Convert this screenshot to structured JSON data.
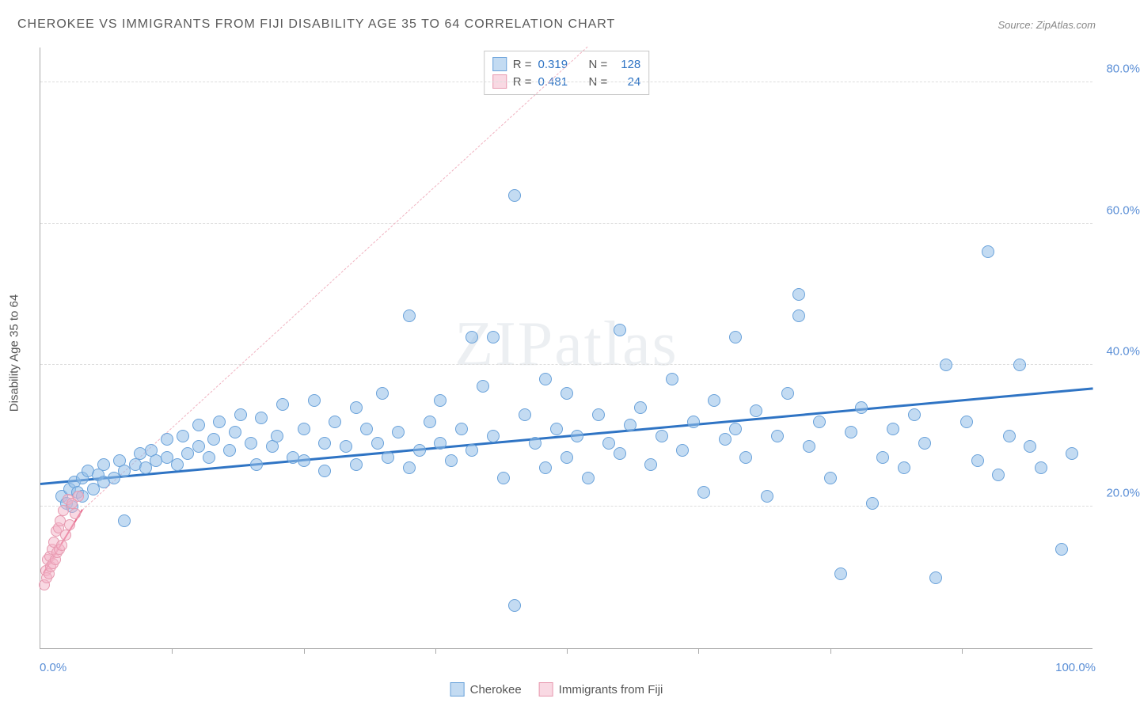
{
  "title": "CHEROKEE VS IMMIGRANTS FROM FIJI DISABILITY AGE 35 TO 64 CORRELATION CHART",
  "source": "Source: ZipAtlas.com",
  "watermark": "ZIPatlas",
  "chart": {
    "type": "scatter",
    "xlim": [
      0,
      100
    ],
    "ylim": [
      0,
      85
    ],
    "x_min_label": "0.0%",
    "x_max_label": "100.0%",
    "x_ticks": [
      12.5,
      25,
      37.5,
      50,
      62.5,
      75,
      87.5
    ],
    "y_ticks": [
      {
        "v": 20,
        "label": "20.0%"
      },
      {
        "v": 40,
        "label": "40.0%"
      },
      {
        "v": 60,
        "label": "60.0%"
      },
      {
        "v": 80,
        "label": "80.0%"
      }
    ],
    "y_axis_label": "Disability Age 35 to 64",
    "background_color": "#ffffff",
    "grid_color": "#dddddd",
    "stat_box": {
      "rows": [
        {
          "swatch": "sw-blue",
          "r_label": "R =",
          "r_val": "0.319",
          "n_label": "N =",
          "n_val": "128"
        },
        {
          "swatch": "sw-pink",
          "r_label": "R =",
          "r_val": "0.481",
          "n_label": "N =",
          "n_val": "24"
        }
      ]
    },
    "legend": [
      {
        "swatch": "sw-blue",
        "label": "Cherokee"
      },
      {
        "swatch": "sw-pink",
        "label": "Immigrants from Fiji"
      }
    ],
    "trend_lines": {
      "blue": {
        "x1": 0,
        "y1": 23.0,
        "x2": 100,
        "y2": 36.5,
        "color": "#2f74c4",
        "width": 3
      },
      "pink": {
        "x1": 0.3,
        "y1": 10.5,
        "x2": 4.0,
        "y2": 19.5,
        "color": "#e86a8c",
        "width": 2
      },
      "pink_dash": {
        "x1": 4.0,
        "y1": 19.5,
        "x2": 52,
        "y2": 85,
        "color": "#f0b2c0",
        "width": 1.5,
        "dash": true
      }
    },
    "series": {
      "cherokee": {
        "marker_fill": "rgba(146,190,232,0.55)",
        "marker_stroke": "#6aa2da",
        "marker_size": 16,
        "points": [
          [
            2,
            21.5
          ],
          [
            2.5,
            20.5
          ],
          [
            2.8,
            22.5
          ],
          [
            3,
            20
          ],
          [
            3.2,
            23.5
          ],
          [
            3.5,
            22
          ],
          [
            4,
            24
          ],
          [
            4,
            21.5
          ],
          [
            4.5,
            25
          ],
          [
            5,
            22.5
          ],
          [
            5.5,
            24.5
          ],
          [
            6,
            23.5
          ],
          [
            6,
            26
          ],
          [
            7,
            24
          ],
          [
            7.5,
            26.5
          ],
          [
            8,
            25
          ],
          [
            8,
            18
          ],
          [
            9,
            26
          ],
          [
            9.5,
            27.5
          ],
          [
            10,
            25.5
          ],
          [
            10.5,
            28
          ],
          [
            11,
            26.5
          ],
          [
            12,
            27
          ],
          [
            12,
            29.5
          ],
          [
            13,
            26
          ],
          [
            13.5,
            30
          ],
          [
            14,
            27.5
          ],
          [
            15,
            28.5
          ],
          [
            15,
            31.5
          ],
          [
            16,
            27
          ],
          [
            16.5,
            29.5
          ],
          [
            17,
            32
          ],
          [
            18,
            28
          ],
          [
            18.5,
            30.5
          ],
          [
            19,
            33
          ],
          [
            20,
            29
          ],
          [
            20.5,
            26
          ],
          [
            21,
            32.5
          ],
          [
            22,
            28.5
          ],
          [
            22.5,
            30
          ],
          [
            23,
            34.5
          ],
          [
            24,
            27
          ],
          [
            25,
            31
          ],
          [
            25,
            26.5
          ],
          [
            26,
            35
          ],
          [
            27,
            29
          ],
          [
            27,
            25
          ],
          [
            28,
            32
          ],
          [
            29,
            28.5
          ],
          [
            30,
            34
          ],
          [
            30,
            26
          ],
          [
            31,
            31
          ],
          [
            32,
            29
          ],
          [
            32.5,
            36
          ],
          [
            33,
            27
          ],
          [
            34,
            30.5
          ],
          [
            35,
            25.5
          ],
          [
            35,
            47
          ],
          [
            36,
            28
          ],
          [
            37,
            32
          ],
          [
            38,
            35
          ],
          [
            38,
            29
          ],
          [
            39,
            26.5
          ],
          [
            40,
            31
          ],
          [
            41,
            28
          ],
          [
            41,
            44
          ],
          [
            42,
            37
          ],
          [
            43,
            30
          ],
          [
            43,
            44
          ],
          [
            44,
            24
          ],
          [
            45,
            6
          ],
          [
            45,
            64
          ],
          [
            46,
            33
          ],
          [
            47,
            29
          ],
          [
            48,
            38
          ],
          [
            48,
            25.5
          ],
          [
            49,
            31
          ],
          [
            50,
            27
          ],
          [
            50,
            36
          ],
          [
            51,
            30
          ],
          [
            52,
            24
          ],
          [
            53,
            33
          ],
          [
            54,
            29
          ],
          [
            55,
            45
          ],
          [
            55,
            27.5
          ],
          [
            56,
            31.5
          ],
          [
            57,
            34
          ],
          [
            58,
            26
          ],
          [
            59,
            30
          ],
          [
            60,
            38
          ],
          [
            61,
            28
          ],
          [
            62,
            32
          ],
          [
            63,
            22
          ],
          [
            64,
            35
          ],
          [
            65,
            29.5
          ],
          [
            66,
            44
          ],
          [
            66,
            31
          ],
          [
            67,
            27
          ],
          [
            68,
            33.5
          ],
          [
            69,
            21.5
          ],
          [
            70,
            30
          ],
          [
            71,
            36
          ],
          [
            72,
            50
          ],
          [
            72,
            47
          ],
          [
            73,
            28.5
          ],
          [
            74,
            32
          ],
          [
            75,
            24
          ],
          [
            76,
            10.5
          ],
          [
            77,
            30.5
          ],
          [
            78,
            34
          ],
          [
            79,
            20.5
          ],
          [
            80,
            27
          ],
          [
            81,
            31
          ],
          [
            82,
            25.5
          ],
          [
            83,
            33
          ],
          [
            84,
            29
          ],
          [
            85,
            10
          ],
          [
            86,
            40
          ],
          [
            88,
            32
          ],
          [
            89,
            26.5
          ],
          [
            90,
            56
          ],
          [
            91,
            24.5
          ],
          [
            92,
            30
          ],
          [
            93,
            40
          ],
          [
            94,
            28.5
          ],
          [
            95,
            25.5
          ],
          [
            97,
            14
          ],
          [
            98,
            27.5
          ]
        ]
      },
      "fiji": {
        "marker_fill": "rgba(244,180,200,0.5)",
        "marker_stroke": "#e79ab0",
        "marker_size": 14,
        "points": [
          [
            0.4,
            9
          ],
          [
            0.5,
            11
          ],
          [
            0.6,
            10
          ],
          [
            0.7,
            12.5
          ],
          [
            0.8,
            10.5
          ],
          [
            0.9,
            13
          ],
          [
            1.0,
            11.5
          ],
          [
            1.1,
            14
          ],
          [
            1.2,
            12
          ],
          [
            1.3,
            15
          ],
          [
            1.4,
            12.5
          ],
          [
            1.5,
            16.5
          ],
          [
            1.6,
            13.5
          ],
          [
            1.7,
            17
          ],
          [
            1.8,
            14
          ],
          [
            1.9,
            18
          ],
          [
            2.0,
            14.5
          ],
          [
            2.2,
            19.5
          ],
          [
            2.4,
            16
          ],
          [
            2.6,
            21
          ],
          [
            2.8,
            17.5
          ],
          [
            3.0,
            20.5
          ],
          [
            3.3,
            19
          ],
          [
            3.6,
            21.5
          ]
        ]
      }
    }
  }
}
